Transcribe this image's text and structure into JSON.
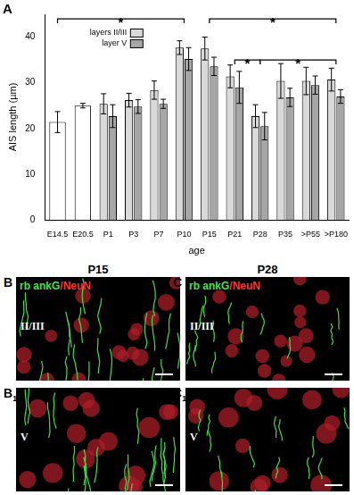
{
  "chart_panel_label": "A",
  "chart_data": {
    "type": "bar",
    "categories": [
      "E14.5",
      "E20.5",
      "P1",
      "P3",
      "P7",
      "P10",
      "P15",
      "P21",
      "P28",
      "P35",
      ">P55",
      ">P180"
    ],
    "x_label": "age",
    "y_label": "AIS length (µm)",
    "ylim": [
      0,
      45
    ],
    "yticks": [
      0,
      10,
      20,
      30,
      40
    ],
    "grid": false,
    "legend": "top-left",
    "series": [
      {
        "name": "layers II/III",
        "color": "#d9d9d9",
        "colors": [
          "#ffffff",
          "#ffffff",
          "#d9d9d9",
          "#d9d9d9",
          "#d9d9d9",
          "#d9d9d9",
          "#d9d9d9",
          "#d9d9d9",
          "#d9d9d9",
          "#d9d9d9",
          "#d9d9d9",
          "#d9d9d9"
        ],
        "values": [
          21.4,
          25,
          25.4,
          26.2,
          28.4,
          37.7,
          37.5,
          31.4,
          22.7,
          30.4,
          30.4,
          30.7
        ],
        "error": [
          2.3,
          0.5,
          2.2,
          1.5,
          2,
          1.5,
          2.5,
          2.5,
          2.5,
          3.8,
          3,
          2.5
        ]
      },
      {
        "name": "layer V",
        "color": "#a6a6a6",
        "values": [
          null,
          null,
          22.7,
          24.8,
          25.4,
          35.2,
          33.6,
          29,
          20.5,
          26.8,
          29.5,
          27
        ],
        "error": [
          null,
          null,
          2.5,
          1.5,
          1,
          2.5,
          2,
          3.5,
          3,
          2,
          2,
          1.5
        ]
      }
    ],
    "annotations": [
      {
        "text": "*",
        "from": "E14.5",
        "to": "P10",
        "y": 44
      },
      {
        "text": "*",
        "from": "P15",
        "to": ">P180",
        "y": 44
      },
      {
        "text": "*",
        "from": "P21",
        "to": "P28",
        "y": 35
      },
      {
        "text": "*",
        "from": "P28",
        "to": ">P180",
        "y": 35
      }
    ]
  },
  "image_panels": [
    {
      "header": "P15",
      "panels": [
        {
          "letter": "B",
          "stain": "rb ankG/NeuN",
          "layer": "II/III"
        },
        {
          "letter": "B",
          "sub": "1",
          "layer": "V"
        }
      ]
    },
    {
      "header": "P28",
      "panels": [
        {
          "letter": "C",
          "stain": "rb ankG/NeuN",
          "layer": "II/III"
        },
        {
          "letter": "C",
          "sub": "1",
          "layer": "V"
        }
      ]
    }
  ]
}
